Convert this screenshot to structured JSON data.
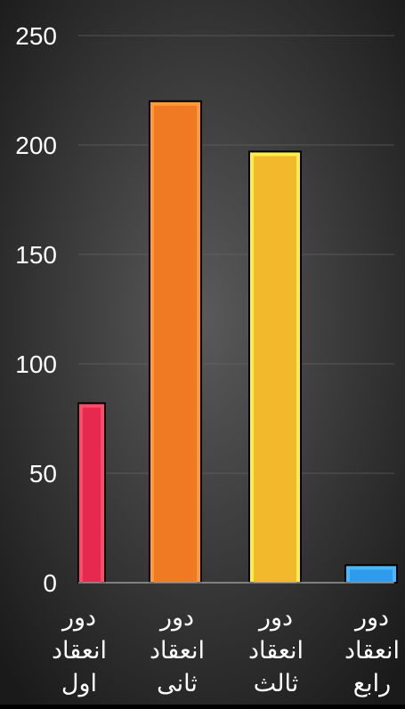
{
  "chart_data": {
    "type": "bar",
    "categories": [
      [
        "دور",
        "انعقاد",
        "اول"
      ],
      [
        "دور",
        "انعقاد",
        "ثانی"
      ],
      [
        "دور",
        "انعقاد",
        "ثالث"
      ],
      [
        "دور",
        "انعقاد",
        "رابع"
      ]
    ],
    "values": [
      82,
      220,
      197,
      8
    ],
    "colors": [
      "#e8294f",
      "#f07a24",
      "#f2b92c",
      "#2f9bea"
    ],
    "border_colors": [
      "#ff4a6a",
      "#ff9a3a",
      "#ffee44",
      "#4ab8ff"
    ],
    "ylim": [
      0,
      250
    ],
    "yticks": [
      "0",
      "50",
      "100",
      "150",
      "200",
      "250"
    ],
    "grid": true,
    "background": [
      "#5a5a5a",
      "#1a1a1a"
    ]
  }
}
